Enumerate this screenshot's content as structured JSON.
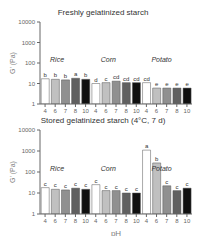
{
  "chart_data": [
    {
      "type": "bar",
      "title": "Freshly gelatinized starch",
      "ylabel": "G’ (Pa)",
      "categories": [
        "4",
        "6",
        "7",
        "8",
        "10",
        "4",
        "6",
        "7",
        "8",
        "10",
        "4",
        "6",
        "7",
        "8",
        "10"
      ],
      "values": [
        17,
        16,
        15,
        18,
        16,
        10,
        11,
        13,
        11,
        11,
        11,
        6,
        6,
        6,
        6
      ],
      "colors": [
        "#ffffff",
        "#c0c0c0",
        "#909090",
        "#606060",
        "#101010",
        "#ffffff",
        "#c0c0c0",
        "#909090",
        "#606060",
        "#101010",
        "#ffffff",
        "#c0c0c0",
        "#909090",
        "#606060",
        "#101010"
      ],
      "log": "y",
      "ylim": [
        1,
        10000
      ],
      "yticks": [
        1,
        10,
        100,
        1000,
        10000
      ],
      "grid": false,
      "annotations": [
        {
          "text": "b",
          "x": 0
        },
        {
          "text": "b",
          "x": 1
        },
        {
          "text": "b",
          "x": 2
        },
        {
          "text": "a",
          "x": 3
        },
        {
          "text": "b",
          "x": 4
        },
        {
          "text": "d",
          "x": 5
        },
        {
          "text": "c",
          "x": 6
        },
        {
          "text": "cd",
          "x": 7
        },
        {
          "text": "cd",
          "x": 8
        },
        {
          "text": "cd",
          "x": 9
        },
        {
          "text": "cd",
          "x": 10
        },
        {
          "text": "e",
          "x": 11
        },
        {
          "text": "e",
          "x": 12
        },
        {
          "text": "e",
          "x": 13
        },
        {
          "text": "e",
          "x": 14
        },
        {
          "text": "Rice",
          "x": 0,
          "y": 150
        },
        {
          "text": "Corn",
          "x": 5,
          "y": 150
        },
        {
          "text": "Potato",
          "x": 10,
          "y": 150
        }
      ]
    },
    {
      "type": "bar",
      "title": "Stored gelatinized starch (4°C, 7 d)",
      "ylabel": "G’ (Pa)",
      "xlabel": "pH",
      "categories": [
        "4",
        "6",
        "7",
        "8",
        "10",
        "4",
        "6",
        "7",
        "8",
        "10",
        "4",
        "6",
        "7",
        "8",
        "10"
      ],
      "values": [
        18,
        15,
        14,
        17,
        15,
        25,
        13,
        13,
        10,
        10,
        1100,
        270,
        22,
        13,
        17
      ],
      "colors": [
        "#ffffff",
        "#c0c0c0",
        "#909090",
        "#606060",
        "#101010",
        "#ffffff",
        "#c0c0c0",
        "#909090",
        "#606060",
        "#101010",
        "#ffffff",
        "#c0c0c0",
        "#909090",
        "#606060",
        "#101010"
      ],
      "log": "y",
      "ylim": [
        1,
        10000
      ],
      "yticks": [
        1,
        10,
        100,
        1000,
        10000
      ],
      "grid": false,
      "annotations": [
        {
          "text": "c",
          "x": 0
        },
        {
          "text": "c",
          "x": 1
        },
        {
          "text": "c",
          "x": 2
        },
        {
          "text": "c",
          "x": 3
        },
        {
          "text": "c",
          "x": 4
        },
        {
          "text": "c",
          "x": 5
        },
        {
          "text": "c",
          "x": 6
        },
        {
          "text": "c",
          "x": 7
        },
        {
          "text": "c",
          "x": 8
        },
        {
          "text": "c",
          "x": 9
        },
        {
          "text": "a",
          "x": 10
        },
        {
          "text": "b",
          "x": 11
        },
        {
          "text": "c",
          "x": 12
        },
        {
          "text": "c",
          "x": 13
        },
        {
          "text": "c",
          "x": 14
        },
        {
          "text": "Rice",
          "x": 0,
          "y": 150
        },
        {
          "text": "Corn",
          "x": 5,
          "y": 150
        },
        {
          "text": "Potato",
          "x": 10,
          "y": 150
        }
      ]
    }
  ]
}
